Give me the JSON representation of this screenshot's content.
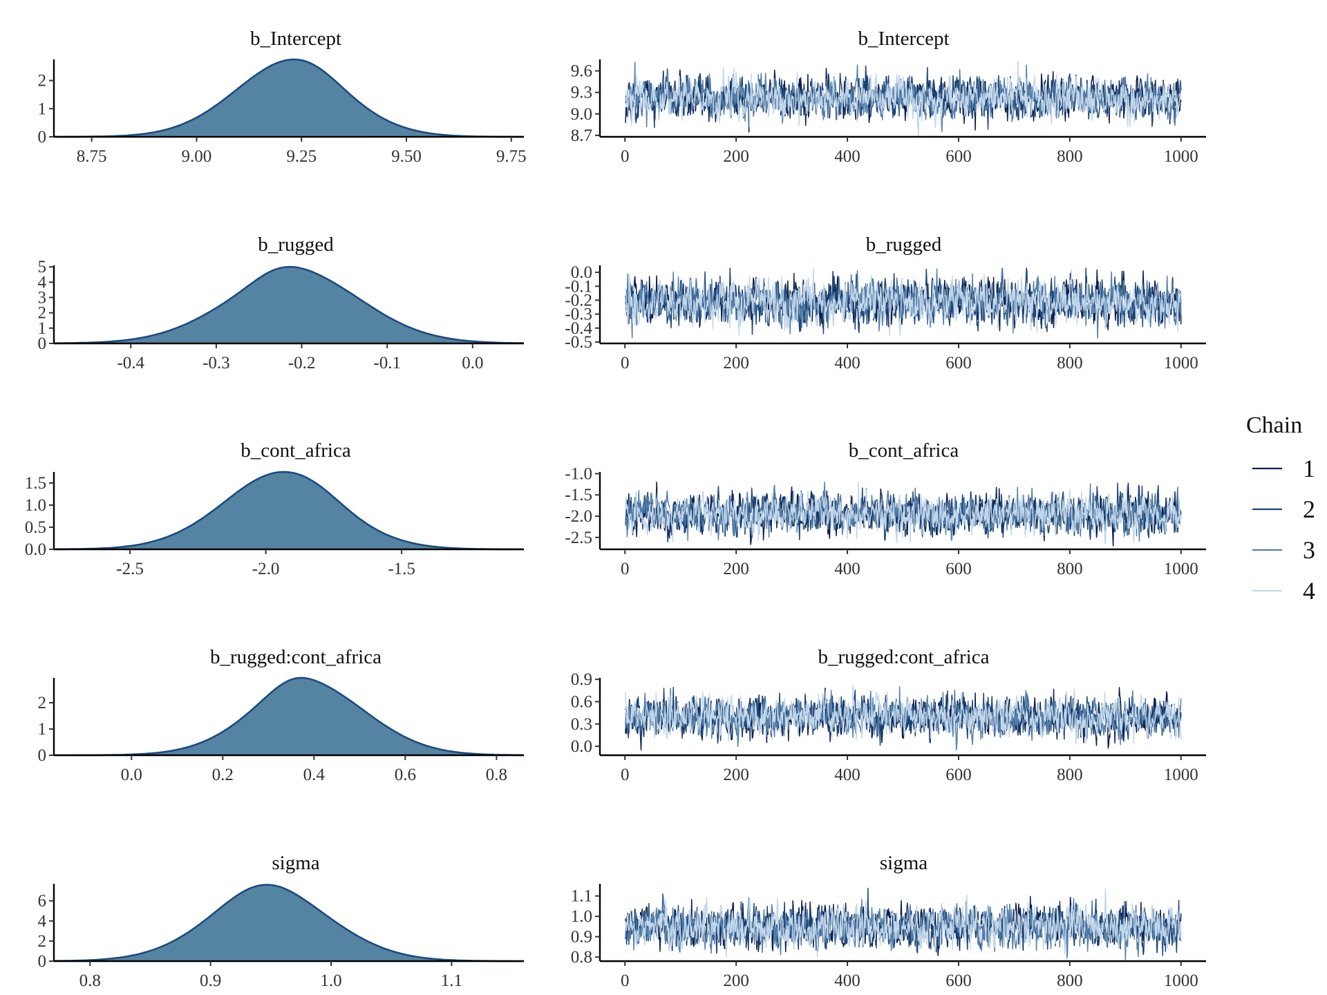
{
  "chart_data": {
    "type": "line",
    "figure": "MCMC posterior density and trace plots",
    "legend": {
      "title": "Chain",
      "position": "right",
      "entries": [
        {
          "label": "1",
          "color": "#0b1f4b"
        },
        {
          "label": "2",
          "color": "#1d4678"
        },
        {
          "label": "3",
          "color": "#5580aa"
        },
        {
          "label": "4",
          "color": "#c2d7ea"
        }
      ]
    },
    "density_fill": "#5584a3",
    "density_line": "#1c4a80",
    "iterations": 1000,
    "parameters": [
      {
        "name": "b_Intercept",
        "density": {
          "type": "area",
          "xlim": [
            8.66,
            9.78
          ],
          "ylim": [
            0,
            2.75
          ],
          "xticks": [
            "8.75",
            "9.00",
            "9.25",
            "9.50",
            "9.75"
          ],
          "yticks": [
            "0",
            "1",
            "2"
          ],
          "mean": 9.22,
          "sd": 0.138,
          "peak": 2.75
        },
        "trace": {
          "type": "line",
          "xlim": [
            -45,
            1045
          ],
          "ylim": [
            8.68,
            9.76
          ],
          "xticks": [
            "0",
            "200",
            "400",
            "600",
            "800",
            "1000"
          ],
          "yticks": [
            "8.7",
            "9.0",
            "9.3",
            "9.6"
          ],
          "mean": 9.22,
          "sd": 0.138,
          "min": 8.7,
          "max": 9.73
        }
      },
      {
        "name": "b_rugged",
        "density": {
          "type": "area",
          "xlim": [
            -0.49,
            0.06
          ],
          "ylim": [
            0,
            5.1
          ],
          "xticks": [
            "-0.4",
            "-0.3",
            "-0.2",
            "-0.1",
            "0.0"
          ],
          "yticks": [
            "0",
            "1",
            "2",
            "3",
            "4",
            "5"
          ],
          "mean": -0.21,
          "sd": 0.08,
          "peak": 5.0
        },
        "trace": {
          "type": "line",
          "xlim": [
            -45,
            1045
          ],
          "ylim": [
            -0.51,
            0.05
          ],
          "xticks": [
            "0",
            "200",
            "400",
            "600",
            "800",
            "1000"
          ],
          "yticks": [
            "-0.5",
            "-0.4",
            "-0.3",
            "-0.2",
            "-0.1",
            "0.0"
          ],
          "mean": -0.21,
          "sd": 0.08,
          "min": -0.49,
          "max": 0.03
        }
      },
      {
        "name": "b_cont_africa",
        "density": {
          "type": "area",
          "xlim": [
            -2.78,
            -1.05
          ],
          "ylim": [
            0,
            1.75
          ],
          "xticks": [
            "-2.5",
            "-2.0",
            "-1.5"
          ],
          "yticks": [
            "0.0",
            "0.5",
            "1.0",
            "1.5"
          ],
          "mean": -1.95,
          "sd": 0.225,
          "peak": 1.75
        },
        "trace": {
          "type": "line",
          "xlim": [
            -45,
            1045
          ],
          "ylim": [
            -2.78,
            -0.96
          ],
          "xticks": [
            "0",
            "200",
            "400",
            "600",
            "800",
            "1000"
          ],
          "yticks": [
            "-2.5",
            "-2.0",
            "-1.5",
            "-1.0"
          ],
          "mean": -1.95,
          "sd": 0.225,
          "min": -2.74,
          "max": -1.2
        }
      },
      {
        "name": "b_rugged:cont_africa",
        "density": {
          "type": "area",
          "xlim": [
            -0.17,
            0.86
          ],
          "ylim": [
            0,
            2.95
          ],
          "xticks": [
            "0.0",
            "0.2",
            "0.4",
            "0.6",
            "0.8"
          ],
          "yticks": [
            "0",
            "1",
            "2"
          ],
          "mean": 0.39,
          "sd": 0.13,
          "peak": 2.95
        },
        "trace": {
          "type": "line",
          "xlim": [
            -45,
            1045
          ],
          "ylim": [
            -0.12,
            0.92
          ],
          "xticks": [
            "0",
            "200",
            "400",
            "600",
            "800",
            "1000"
          ],
          "yticks": [
            "0.0",
            "0.3",
            "0.6",
            "0.9"
          ],
          "mean": 0.39,
          "sd": 0.13,
          "min": -0.05,
          "max": 0.85
        }
      },
      {
        "name": "sigma",
        "density": {
          "type": "area",
          "xlim": [
            0.77,
            1.16
          ],
          "ylim": [
            0,
            7.7
          ],
          "xticks": [
            "0.8",
            "0.9",
            "1.0",
            "1.1"
          ],
          "yticks": [
            "0",
            "2",
            "4",
            "6"
          ],
          "mean": 0.95,
          "sd": 0.052,
          "peak": 7.6
        },
        "trace": {
          "type": "line",
          "xlim": [
            -45,
            1045
          ],
          "ylim": [
            0.78,
            1.16
          ],
          "xticks": [
            "0",
            "200",
            "400",
            "600",
            "800",
            "1000"
          ],
          "yticks": [
            "0.8",
            "0.9",
            "1.0",
            "1.1"
          ],
          "mean": 0.95,
          "sd": 0.052,
          "min": 0.78,
          "max": 1.15
        }
      }
    ]
  }
}
